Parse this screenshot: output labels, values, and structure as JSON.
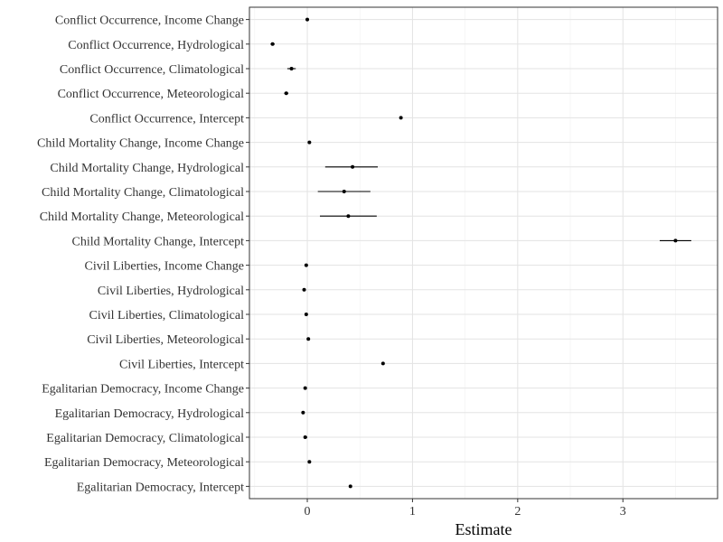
{
  "chart_data": {
    "type": "scatter",
    "title": "",
    "xlabel": "Estimate",
    "ylabel": "",
    "xlim": [
      -0.55,
      3.9
    ],
    "x_ticks": [
      0,
      1,
      2,
      3
    ],
    "grid": true,
    "legend": "none",
    "point_color": "#000000",
    "points": [
      {
        "label": "Conflict Occurrence, Income Change",
        "estimate": 0.0,
        "low": -0.01,
        "high": 0.01
      },
      {
        "label": "Conflict Occurrence, Hydrological",
        "estimate": -0.33,
        "low": -0.35,
        "high": -0.31
      },
      {
        "label": "Conflict Occurrence, Climatological",
        "estimate": -0.15,
        "low": -0.19,
        "high": -0.11
      },
      {
        "label": "Conflict Occurrence, Meteorological",
        "estimate": -0.2,
        "low": -0.22,
        "high": -0.18
      },
      {
        "label": "Conflict Occurrence, Intercept",
        "estimate": 0.89,
        "low": 0.88,
        "high": 0.9
      },
      {
        "label": "Child Mortality Change, Income Change",
        "estimate": 0.02,
        "low": 0.01,
        "high": 0.03
      },
      {
        "label": "Child Mortality Change, Hydrological",
        "estimate": 0.43,
        "low": 0.17,
        "high": 0.67
      },
      {
        "label": "Child Mortality Change, Climatological",
        "estimate": 0.35,
        "low": 0.1,
        "high": 0.6
      },
      {
        "label": "Child Mortality Change, Meteorological",
        "estimate": 0.39,
        "low": 0.12,
        "high": 0.66
      },
      {
        "label": "Child Mortality Change, Intercept",
        "estimate": 3.5,
        "low": 3.35,
        "high": 3.65
      },
      {
        "label": "Civil Liberties, Income Change",
        "estimate": -0.01,
        "low": -0.02,
        "high": 0.0
      },
      {
        "label": "Civil Liberties, Hydrological",
        "estimate": -0.03,
        "low": -0.04,
        "high": -0.02
      },
      {
        "label": "Civil Liberties, Climatological",
        "estimate": -0.01,
        "low": -0.02,
        "high": 0.0
      },
      {
        "label": "Civil Liberties, Meteorological",
        "estimate": 0.01,
        "low": 0.0,
        "high": 0.02
      },
      {
        "label": "Civil Liberties, Intercept",
        "estimate": 0.72,
        "low": 0.71,
        "high": 0.73
      },
      {
        "label": "Egalitarian Democracy, Income Change",
        "estimate": -0.02,
        "low": -0.03,
        "high": -0.01
      },
      {
        "label": "Egalitarian Democracy, Hydrological",
        "estimate": -0.04,
        "low": -0.05,
        "high": -0.03
      },
      {
        "label": "Egalitarian Democracy, Climatological",
        "estimate": -0.02,
        "low": -0.03,
        "high": 0.0
      },
      {
        "label": "Egalitarian Democracy, Meteorological",
        "estimate": 0.02,
        "low": 0.01,
        "high": 0.03
      },
      {
        "label": "Egalitarian Democracy, Intercept",
        "estimate": 0.41,
        "low": 0.4,
        "high": 0.42
      }
    ]
  }
}
